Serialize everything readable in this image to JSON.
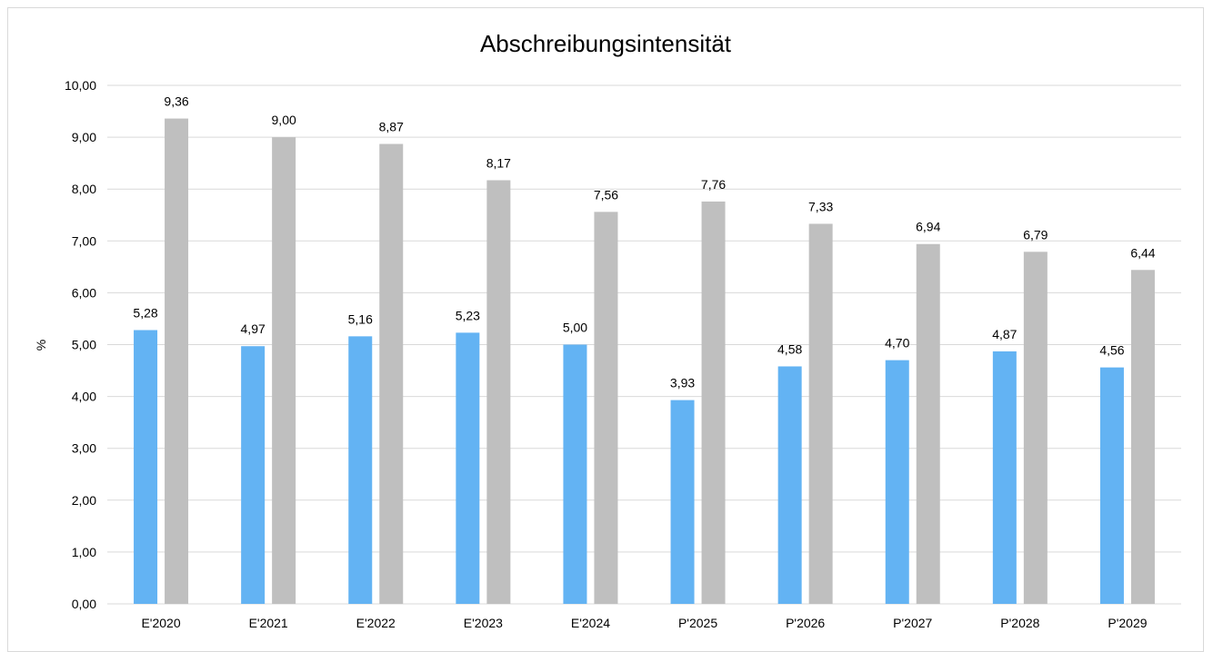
{
  "chart_data": {
    "type": "bar",
    "title": "Abschreibungsintensität",
    "xlabel": "",
    "ylabel": "%",
    "categories": [
      "E'2020",
      "E'2021",
      "E'2022",
      "E'2023",
      "E'2024",
      "P'2025",
      "P'2026",
      "P'2027",
      "P'2028",
      "P'2029"
    ],
    "series": [
      {
        "color": "#63b3f3",
        "values": [
          5.28,
          4.97,
          5.16,
          5.23,
          5.0,
          3.93,
          4.58,
          4.7,
          4.87,
          4.56
        ],
        "labels": [
          "5,28",
          "4,97",
          "5,16",
          "5,23",
          "5,00",
          "3,93",
          "4,58",
          "4,70",
          "4,87",
          "4,56"
        ]
      },
      {
        "color": "#bfbfbf",
        "values": [
          9.36,
          9.0,
          8.87,
          8.17,
          7.56,
          7.76,
          7.33,
          6.94,
          6.79,
          6.44
        ],
        "labels": [
          "9,36",
          "9,00",
          "8,87",
          "8,17",
          "7,56",
          "7,76",
          "7,33",
          "6,94",
          "6,79",
          "6,44"
        ]
      }
    ],
    "ylim": [
      0,
      10
    ],
    "yticks": [
      "0,00",
      "1,00",
      "2,00",
      "3,00",
      "4,00",
      "5,00",
      "6,00",
      "7,00",
      "8,00",
      "9,00",
      "10,00"
    ],
    "grid": true,
    "gridColor": "#d9d9d9"
  }
}
